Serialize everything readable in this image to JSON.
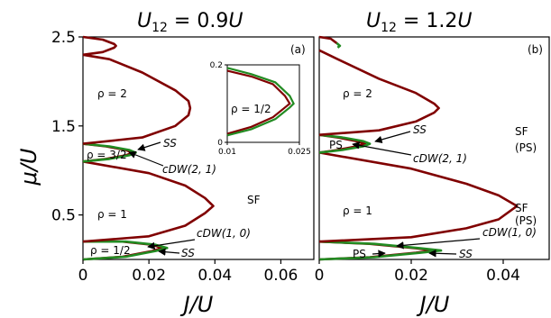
{
  "chart_data": [
    {
      "id": "a",
      "type": "line",
      "title": "U_12 = 0.9U",
      "xlabel": "J/U",
      "ylabel": "μ/U",
      "xlim": [
        0,
        0.07
      ],
      "ylim": [
        0,
        2.5
      ],
      "xticks": [
        "0",
        "0.02",
        "0.04",
        "0.06"
      ],
      "xtick_values": [
        0,
        0.02,
        0.04,
        0.06
      ],
      "yticks": [
        "0.5",
        "1.5",
        "2.5"
      ],
      "ytick_values": [
        0.5,
        1.5,
        2.5
      ],
      "panel_label": "(a)",
      "series": [
        {
          "color": "#800000",
          "points": [
            [
              0,
              0
            ],
            [
              0.012,
              0.03
            ],
            [
              0.021,
              0.095
            ],
            [
              0.024,
              0.13
            ],
            [
              0.021,
              0.165
            ],
            [
              0.012,
              0.2
            ],
            [
              0,
              0.2
            ]
          ]
        },
        {
          "color": "#228B22",
          "points": [
            [
              0,
              0
            ],
            [
              0.013,
              0.03
            ],
            [
              0.022,
              0.095
            ],
            [
              0.0255,
              0.13
            ],
            [
              0.022,
              0.165
            ],
            [
              0.013,
              0.2
            ],
            [
              0,
              0.2
            ]
          ]
        },
        {
          "color": "#800000",
          "points": [
            [
              0,
              0.2
            ],
            [
              0.02,
              0.26
            ],
            [
              0.031,
              0.38
            ],
            [
              0.037,
              0.52
            ],
            [
              0.0395,
              0.6
            ],
            [
              0.037,
              0.69
            ],
            [
              0.031,
              0.83
            ],
            [
              0.02,
              0.97
            ],
            [
              0,
              1.1
            ]
          ]
        },
        {
          "color": "#800000",
          "points": [
            [
              0,
              1.1
            ],
            [
              0.007,
              1.13
            ],
            [
              0.013,
              1.17
            ],
            [
              0.015,
              1.2
            ],
            [
              0.013,
              1.23
            ],
            [
              0.007,
              1.27
            ],
            [
              0,
              1.3
            ]
          ]
        },
        {
          "color": "#228B22",
          "points": [
            [
              0,
              1.1
            ],
            [
              0.008,
              1.13
            ],
            [
              0.014,
              1.17
            ],
            [
              0.016,
              1.2
            ],
            [
              0.014,
              1.23
            ],
            [
              0.008,
              1.27
            ],
            [
              0,
              1.3
            ]
          ]
        },
        {
          "color": "#800000",
          "points": [
            [
              0,
              1.3
            ],
            [
              0.018,
              1.37
            ],
            [
              0.028,
              1.5
            ],
            [
              0.032,
              1.62
            ],
            [
              0.0325,
              1.7
            ],
            [
              0.032,
              1.78
            ],
            [
              0.028,
              1.9
            ],
            [
              0.018,
              2.1
            ],
            [
              0.008,
              2.25
            ],
            [
              0,
              2.3
            ]
          ]
        },
        {
          "color": "#800000",
          "points": [
            [
              0,
              2.3
            ],
            [
              0.006,
              2.33
            ],
            [
              0.0095,
              2.38
            ],
            [
              0.01,
              2.4
            ],
            [
              0.0095,
              2.42
            ],
            [
              0.006,
              2.47
            ],
            [
              0,
              2.5
            ]
          ]
        }
      ],
      "labels": {
        "rho2": "ρ = 2",
        "rho32": "ρ = 3/2",
        "rho1": "ρ = 1",
        "rho12": "ρ = 1/2",
        "ss_upper": "SS",
        "cdw21": "cDW(2, 1)",
        "sf": "SF",
        "cdw10": "cDW(1, 0)",
        "ss_lower": "SS"
      },
      "inset": {
        "xlim": [
          0.01,
          0.025
        ],
        "ylim": [
          0,
          0.2
        ],
        "xticks": [
          "0.01",
          "0.025"
        ],
        "xtick_values": [
          0.01,
          0.025
        ],
        "yticks": [
          "0",
          "0.2"
        ],
        "ytick_values": [
          0,
          0.2
        ],
        "label": "ρ = 1/2",
        "series": [
          {
            "color": "#800000",
            "points": [
              [
                0.01,
                0.022
              ],
              [
                0.015,
                0.04
              ],
              [
                0.0195,
                0.065
              ],
              [
                0.022,
                0.09
              ],
              [
                0.023,
                0.1
              ],
              [
                0.022,
                0.12
              ],
              [
                0.0195,
                0.15
              ],
              [
                0.015,
                0.17
              ],
              [
                0.01,
                0.185
              ]
            ]
          },
          {
            "color": "#228B22",
            "points": [
              [
                0.01,
                0.018
              ],
              [
                0.015,
                0.034
              ],
              [
                0.02,
                0.06
              ],
              [
                0.023,
                0.09
              ],
              [
                0.0238,
                0.1
              ],
              [
                0.023,
                0.12
              ],
              [
                0.02,
                0.155
              ],
              [
                0.015,
                0.176
              ],
              [
                0.01,
                0.192
              ]
            ]
          }
        ]
      }
    },
    {
      "id": "b",
      "type": "line",
      "title": "U_12 = 1.2U",
      "xlabel": "J/U",
      "xlim": [
        0,
        0.05
      ],
      "ylim": [
        0,
        2.5
      ],
      "xticks": [
        "0",
        "0.02",
        "0.04"
      ],
      "xtick_values": [
        0,
        0.02,
        0.04
      ],
      "panel_label": "(b)",
      "series": [
        {
          "color": "#800000",
          "points": [
            [
              0,
              0
            ],
            [
              0.011,
              0.025
            ],
            [
              0.021,
              0.075
            ],
            [
              0.025,
              0.1
            ],
            [
              0.021,
              0.125
            ],
            [
              0.011,
              0.175
            ],
            [
              0,
              0.2
            ]
          ]
        },
        {
          "color": "#228B22",
          "points": [
            [
              0,
              0
            ],
            [
              0.012,
              0.025
            ],
            [
              0.022,
              0.075
            ],
            [
              0.0265,
              0.1
            ],
            [
              0.022,
              0.125
            ],
            [
              0.012,
              0.175
            ],
            [
              0,
              0.2
            ]
          ]
        },
        {
          "color": "#800000",
          "points": [
            [
              0,
              0.2
            ],
            [
              0.02,
              0.25
            ],
            [
              0.032,
              0.35
            ],
            [
              0.039,
              0.45
            ],
            [
              0.043,
              0.6
            ],
            [
              0.039,
              0.72
            ],
            [
              0.032,
              0.85
            ],
            [
              0.02,
              1.02
            ],
            [
              0,
              1.2
            ]
          ]
        },
        {
          "color": "#800000",
          "points": [
            [
              0,
              1.2
            ],
            [
              0.004,
              1.23
            ],
            [
              0.008,
              1.27
            ],
            [
              0.01,
              1.3
            ],
            [
              0.008,
              1.33
            ],
            [
              0.004,
              1.37
            ],
            [
              0,
              1.4
            ]
          ]
        },
        {
          "color": "#228B22",
          "points": [
            [
              0,
              1.2
            ],
            [
              0.005,
              1.23
            ],
            [
              0.0095,
              1.27
            ],
            [
              0.011,
              1.3
            ],
            [
              0.0095,
              1.33
            ],
            [
              0.005,
              1.37
            ],
            [
              0,
              1.4
            ]
          ]
        },
        {
          "color": "#800000",
          "points": [
            [
              0,
              1.4
            ],
            [
              0.013,
              1.45
            ],
            [
              0.021,
              1.55
            ],
            [
              0.025,
              1.65
            ],
            [
              0.026,
              1.7
            ],
            [
              0.025,
              1.75
            ],
            [
              0.021,
              1.87
            ],
            [
              0.013,
              2.03
            ],
            [
              0.004,
              2.25
            ],
            [
              0,
              2.35
            ]
          ]
        },
        {
          "color": "#800000",
          "points": [
            [
              0,
              2.5
            ],
            [
              0.0025,
              2.48
            ],
            [
              0.0038,
              2.43
            ]
          ]
        },
        {
          "color": "#228B22",
          "points": [
            [
              0.0038,
              2.43
            ],
            [
              0.0045,
              2.4
            ],
            [
              0.004,
              2.38
            ]
          ]
        }
      ],
      "labels": {
        "rho2": "ρ = 2",
        "ss_upper": "SS",
        "ps_upper": "PS",
        "cdw21": "cDW(2, 1)",
        "sf": "SF",
        "sf_ps": "(PS)",
        "rho1": "ρ = 1",
        "cdw10": "cDW(1, 0)",
        "ps_lower": "PS",
        "ss_lower": "SS"
      }
    }
  ]
}
